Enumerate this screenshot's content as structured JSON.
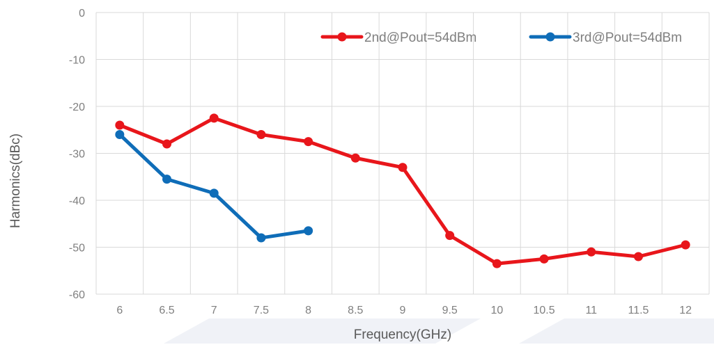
{
  "chart_data": {
    "type": "line",
    "xlabel": "Frequency(GHz)",
    "ylabel": "Harmonics(dBc)",
    "xlim": [
      6,
      12
    ],
    "ylim": [
      -60,
      0
    ],
    "x_ticks": [
      "6",
      "6.5",
      "7",
      "7.5",
      "8",
      "8.5",
      "9",
      "9.5",
      "10",
      "10.5",
      "11",
      "11.5",
      "12"
    ],
    "y_ticks": [
      "0",
      "-10",
      "-20",
      "-30",
      "-40",
      "-50",
      "-60"
    ],
    "grid": true,
    "legend_position": "top-right",
    "series": [
      {
        "name": "2nd@Pout=54dBm",
        "color": "#e8161b",
        "x": [
          6,
          6.5,
          7,
          7.5,
          8,
          8.5,
          9,
          9.5,
          10,
          10.5,
          11,
          11.5,
          12
        ],
        "values": [
          -24,
          -28,
          -22.5,
          -26,
          -27.5,
          -31,
          -33,
          -47.5,
          -53.5,
          -52.5,
          -51,
          -52,
          -49.5
        ]
      },
      {
        "name": "3rd@Pout=54dBm",
        "color": "#0f6db8",
        "x": [
          6,
          6.5,
          7,
          7.5,
          8
        ],
        "values": [
          -26,
          -35.5,
          -38.5,
          -48,
          -46.5
        ]
      }
    ]
  }
}
